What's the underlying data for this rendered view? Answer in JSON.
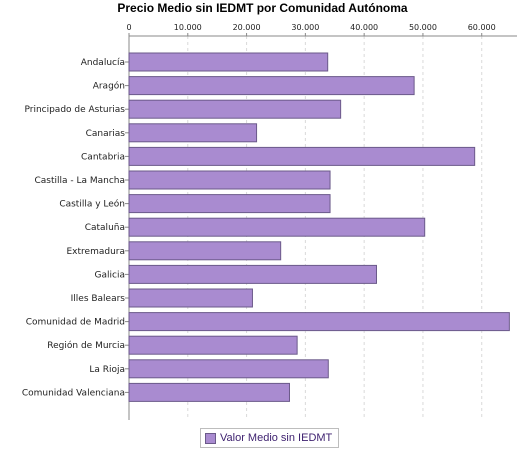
{
  "chart_data": {
    "type": "bar",
    "orientation": "horizontal",
    "title": "Precio Medio sin IEDMT por Comunidad Autónoma",
    "categories": [
      "Andalucía",
      "Aragón",
      "Principado de Asturias",
      "Canarias",
      "Cantabria",
      "Castilla - La Mancha",
      "Castilla y León",
      "Cataluña",
      "Extremadura",
      "Galicia",
      "Illes Balears",
      "Comunidad de Madrid",
      "Región de Murcia",
      "La Rioja",
      "Comunidad Valenciana"
    ],
    "series": [
      {
        "name": "Valor Medio sin IEDMT",
        "values": [
          33800,
          48500,
          36000,
          21700,
          58800,
          34200,
          34200,
          50300,
          25800,
          42100,
          21000,
          64700,
          28600,
          33900,
          27300
        ]
      }
    ],
    "xlim": [
      0,
      66000
    ],
    "xticks": [
      0,
      10000,
      20000,
      30000,
      40000,
      50000,
      60000
    ],
    "xtick_labels": [
      "0",
      "10.000",
      "20.000",
      "30.000",
      "40.000",
      "50.000",
      "60.000"
    ],
    "x_axis_position": "top",
    "grid": "vertical dashed",
    "legend_position": "bottom",
    "colors": {
      "bar_fill": "#a98bd0",
      "bar_stroke": "#6b5a8a",
      "grid": "#d9d9d9",
      "axis": "#888888",
      "legend_text": "#3c1f6e"
    }
  }
}
